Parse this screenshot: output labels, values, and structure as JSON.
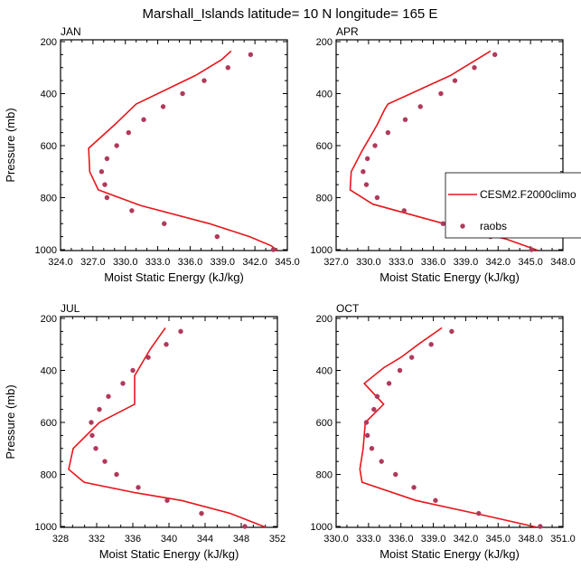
{
  "title": "Marshall_Islands  latitude= 10 N longitude= 165 E",
  "chart_data": [
    {
      "type": "line",
      "panel": "JAN",
      "xlabel": "Moist Static Energy (kJ/kg)",
      "ylabel": "Pressure (mb)",
      "xlim": [
        324.0,
        345.0
      ],
      "ylim": [
        1000,
        200
      ],
      "xticks": [
        "324.0",
        "327.0",
        "330.0",
        "333.0",
        "336.0",
        "339.0",
        "342.0",
        "345.0"
      ],
      "yticks": [
        "200",
        "400",
        "600",
        "800",
        "1000"
      ],
      "line": {
        "name": "CESM2.F2000climo",
        "pressure": [
          236,
          270,
          330,
          440,
          520,
          610,
          700,
          770,
          830,
          900,
          950,
          985,
          1003
        ],
        "mse": [
          339.8,
          338.9,
          336.5,
          331.0,
          329.0,
          326.6,
          326.7,
          327.5,
          331.4,
          337.8,
          341.5,
          343.5,
          344.1
        ]
      },
      "points": {
        "name": "raobs",
        "pressure": [
          250,
          300,
          350,
          400,
          450,
          500,
          550,
          600,
          650,
          700,
          750,
          800,
          850,
          900,
          950,
          1000
        ],
        "mse": [
          341.6,
          339.5,
          337.3,
          335.3,
          333.5,
          331.7,
          330.3,
          329.2,
          328.3,
          327.8,
          328.1,
          328.3,
          330.6,
          333.6,
          338.5,
          343.7
        ]
      }
    },
    {
      "type": "line",
      "panel": "APR",
      "xlabel": "Moist Static Energy (kJ/kg)",
      "ylabel": "Pressure (mb)",
      "xlim": [
        327.0,
        348.0
      ],
      "ylim": [
        1000,
        200
      ],
      "xticks": [
        "327.0",
        "330.0",
        "333.0",
        "336.0",
        "339.0",
        "342.0",
        "345.0",
        "348.0"
      ],
      "yticks": [
        "200",
        "400",
        "600",
        "800",
        "1000"
      ],
      "line": {
        "name": "CESM2.F2000climo",
        "pressure": [
          236,
          330,
          440,
          460,
          520,
          620,
          700,
          770,
          825,
          900,
          960,
          1003
        ],
        "mse": [
          341.3,
          337.6,
          331.8,
          331.5,
          330.8,
          329.4,
          328.4,
          328.3,
          330.4,
          337.0,
          342.8,
          345.7
        ]
      },
      "points": {
        "name": "raobs",
        "pressure": [
          250,
          300,
          350,
          400,
          450,
          500,
          550,
          600,
          650,
          700,
          750,
          800,
          850,
          900,
          950,
          1000
        ],
        "mse": [
          341.7,
          339.8,
          338.0,
          336.7,
          334.8,
          333.4,
          331.8,
          330.6,
          329.9,
          329.5,
          329.8,
          330.8,
          333.3,
          336.9,
          341.3,
          345.1
        ]
      }
    },
    {
      "type": "line",
      "panel": "JUL",
      "xlabel": "Moist Static Energy (kJ/kg)",
      "ylabel": "Pressure (mb)",
      "xlim": [
        328,
        352
      ],
      "ylim": [
        1000,
        200
      ],
      "xticks": [
        "328",
        "332",
        "336",
        "340",
        "344",
        "348",
        "352"
      ],
      "yticks": [
        "200",
        "400",
        "600",
        "800",
        "1000"
      ],
      "line": {
        "name": "CESM2.F2000climo",
        "pressure": [
          236,
          320,
          420,
          530,
          600,
          700,
          780,
          830,
          870,
          900,
          950,
          1003
        ],
        "mse": [
          339.6,
          337.9,
          336.2,
          336.2,
          332.3,
          329.4,
          328.9,
          330.6,
          336.2,
          341.4,
          346.8,
          350.7
        ]
      },
      "points": {
        "name": "raobs",
        "pressure": [
          250,
          300,
          350,
          400,
          450,
          500,
          550,
          600,
          650,
          700,
          750,
          800,
          850,
          900,
          950,
          1000
        ],
        "mse": [
          341.3,
          339.7,
          337.7,
          336.0,
          334.9,
          333.3,
          332.3,
          331.4,
          331.5,
          331.9,
          332.9,
          334.2,
          336.6,
          339.8,
          343.6,
          348.4
        ]
      }
    },
    {
      "type": "line",
      "panel": "OCT",
      "xlabel": "Moist Static Energy (kJ/kg)",
      "ylabel": "Pressure (mb)",
      "xlim": [
        330.0,
        351.0
      ],
      "ylim": [
        1000,
        200
      ],
      "xticks": [
        "330.0",
        "333.0",
        "336.0",
        "339.0",
        "342.0",
        "345.0",
        "348.0",
        "351.0"
      ],
      "yticks": [
        "200",
        "400",
        "600",
        "800",
        "1000"
      ],
      "line": {
        "name": "CESM2.F2000climo",
        "pressure": [
          236,
          300,
          350,
          390,
          450,
          530,
          600,
          700,
          780,
          830,
          900,
          960,
          1003
        ],
        "mse": [
          339.8,
          337.6,
          336.0,
          334.4,
          332.6,
          334.4,
          332.7,
          332.5,
          332.2,
          332.4,
          337.4,
          344.0,
          348.6
        ]
      },
      "points": {
        "name": "raobs",
        "pressure": [
          250,
          300,
          350,
          400,
          450,
          500,
          550,
          600,
          650,
          700,
          750,
          800,
          850,
          900,
          950,
          1000
        ],
        "mse": [
          340.7,
          338.8,
          337.0,
          335.9,
          334.9,
          333.8,
          333.5,
          332.8,
          332.9,
          333.3,
          334.2,
          335.5,
          337.2,
          339.2,
          343.2,
          348.9
        ]
      }
    }
  ],
  "legend": {
    "line_label": "CESM2.F2000climo",
    "points_label": "raobs"
  },
  "colors": {
    "line": "#e8161b",
    "points": "#b03a5b",
    "axes": "#000000"
  }
}
